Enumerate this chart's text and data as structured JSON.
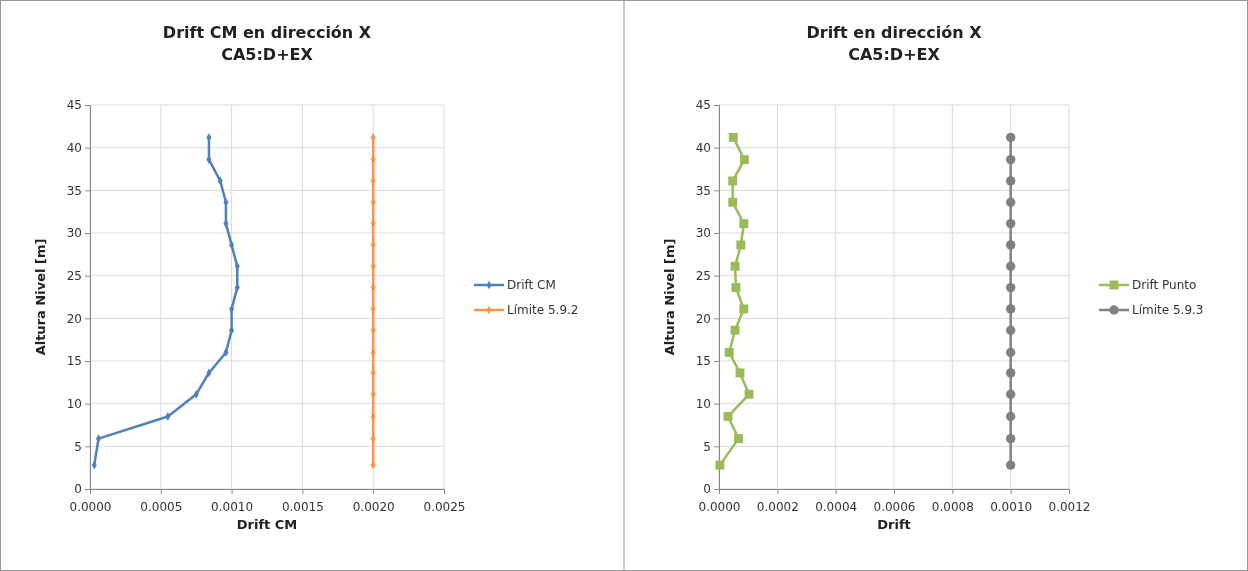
{
  "chart_data": [
    {
      "type": "line",
      "title": "Drift CM en dirección X\nCA5:D+EX",
      "xlabel": "Drift CM",
      "ylabel": "Altura Nivel [m]",
      "xlim": [
        0,
        0.0025
      ],
      "xticks": [
        {
          "value": 0,
          "label": "0.0000"
        },
        {
          "value": 0.0005,
          "label": "0.0005"
        },
        {
          "value": 0.001,
          "label": "0.0010"
        },
        {
          "value": 0.0015,
          "label": "0.0015"
        },
        {
          "value": 0.002,
          "label": "0.0020"
        },
        {
          "value": 0.0025,
          "label": "0.0025"
        }
      ],
      "ylim": [
        0,
        45
      ],
      "yticks": [
        0,
        5,
        10,
        15,
        20,
        25,
        30,
        35,
        40,
        45
      ],
      "grid": true,
      "legend": "right",
      "marker": "diamond",
      "series": [
        {
          "name": "Drift CM",
          "color": "#4f81bd",
          "x": [
            3e-05,
            6e-05,
            0.00055,
            0.00075,
            0.00084,
            0.00096,
            0.001,
            0.001,
            0.00104,
            0.00104,
            0.001,
            0.00096,
            0.00096,
            0.00092,
            0.00084,
            0.00084
          ],
          "values": [
            2.8,
            5.9,
            8.5,
            11.1,
            13.6,
            16,
            18.6,
            21.1,
            23.6,
            26.1,
            28.6,
            31.1,
            33.6,
            36.1,
            38.6,
            41.2
          ]
        },
        {
          "name": "Límite 5.9.2",
          "color": "#f79646",
          "x": [
            0.002,
            0.002,
            0.002,
            0.002,
            0.002,
            0.002,
            0.002,
            0.002,
            0.002,
            0.002,
            0.002,
            0.002,
            0.002,
            0.002,
            0.002,
            0.002
          ],
          "values": [
            2.8,
            5.9,
            8.5,
            11.1,
            13.6,
            16,
            18.6,
            21.1,
            23.6,
            26.1,
            28.6,
            31.1,
            33.6,
            36.1,
            38.6,
            41.2
          ]
        }
      ]
    },
    {
      "type": "line",
      "title": "Drift en dirección X\nCA5:D+EX",
      "xlabel": "Drift",
      "ylabel": "Altura Nivel [m]",
      "xlim": [
        0,
        0.0012
      ],
      "xticks": [
        {
          "value": 0,
          "label": "0.0000"
        },
        {
          "value": 0.0002,
          "label": "0.0002"
        },
        {
          "value": 0.0004,
          "label": "0.0004"
        },
        {
          "value": 0.0006,
          "label": "0.0006"
        },
        {
          "value": 0.0008,
          "label": "0.0008"
        },
        {
          "value": 0.001,
          "label": "0.0010"
        },
        {
          "value": 0.0012,
          "label": "0.0012"
        }
      ],
      "ylim": [
        0,
        45
      ],
      "yticks": [
        0,
        5,
        10,
        15,
        20,
        25,
        30,
        35,
        40,
        45
      ],
      "grid": true,
      "legend": "right",
      "series": [
        {
          "name": "Drift Punto",
          "color": "#9bbb59",
          "marker": "square",
          "x": [
            3e-06,
            6.7e-05,
            3.1e-05,
            0.000103,
            7.2e-05,
            3.5e-05,
            5.5e-05,
            8.5e-05,
            5.8e-05,
            5.5e-05,
            7.5e-05,
            8.5e-05,
            4.7e-05,
            4.7e-05,
            8.7e-05,
            4.9e-05
          ],
          "values": [
            2.8,
            5.9,
            8.5,
            11.1,
            13.6,
            16,
            18.6,
            21.1,
            23.6,
            26.1,
            28.6,
            31.1,
            33.6,
            36.1,
            38.6,
            41.2
          ]
        },
        {
          "name": "Límite 5.9.3",
          "color": "#808080",
          "marker": "circle",
          "x": [
            0.001,
            0.001,
            0.001,
            0.001,
            0.001,
            0.001,
            0.001,
            0.001,
            0.001,
            0.001,
            0.001,
            0.001,
            0.001,
            0.001,
            0.001,
            0.001
          ],
          "values": [
            2.8,
            5.9,
            8.5,
            11.1,
            13.6,
            16,
            18.6,
            21.1,
            23.6,
            26.1,
            28.6,
            31.1,
            33.6,
            36.1,
            38.6,
            41.2
          ]
        }
      ]
    }
  ]
}
